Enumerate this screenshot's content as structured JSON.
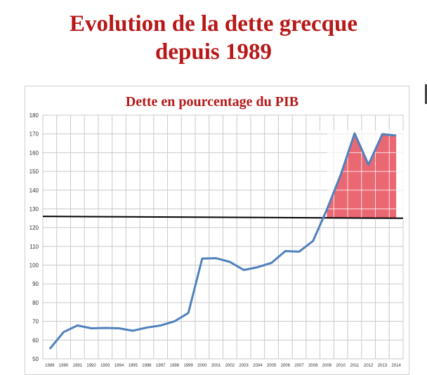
{
  "header": {
    "title_line1": "Evolution de la dette grecque",
    "title_line2": "depuis 1989"
  },
  "chart_data": {
    "type": "line",
    "title": "Dette en pourcentage du PIB",
    "xlabel": "",
    "ylabel": "",
    "x": [
      "1989",
      "1990",
      "1991",
      "1992",
      "1993",
      "1994",
      "1995",
      "1996",
      "1997",
      "1998",
      "1999",
      "2000",
      "2001",
      "2002",
      "2003",
      "2004",
      "2005",
      "2006",
      "2007",
      "2008",
      "2009",
      "2010",
      "2011",
      "2012",
      "2013",
      "2014"
    ],
    "ylim": [
      50,
      180
    ],
    "yticks": [
      50,
      60,
      70,
      80,
      90,
      100,
      110,
      120,
      130,
      140,
      150,
      160,
      170,
      180
    ],
    "grid": true,
    "series": [
      {
        "values": [
          55.3,
          64.3,
          67.8,
          66.3,
          66.5,
          66.3,
          65.0,
          66.7,
          67.8,
          70.0,
          74.5,
          103.5,
          103.7,
          101.7,
          97.4,
          98.9,
          101.2,
          107.5,
          107.2,
          112.9,
          129.7,
          148.3,
          170.3,
          153.6,
          169.9,
          169.1
        ],
        "color": "#4f81bd"
      }
    ],
    "reference_line": {
      "value": 126.0,
      "value_end": 125.0,
      "color": "#000000"
    },
    "shaded_area": {
      "from": "2009",
      "to": "2014",
      "color": "#e8606a"
    }
  }
}
